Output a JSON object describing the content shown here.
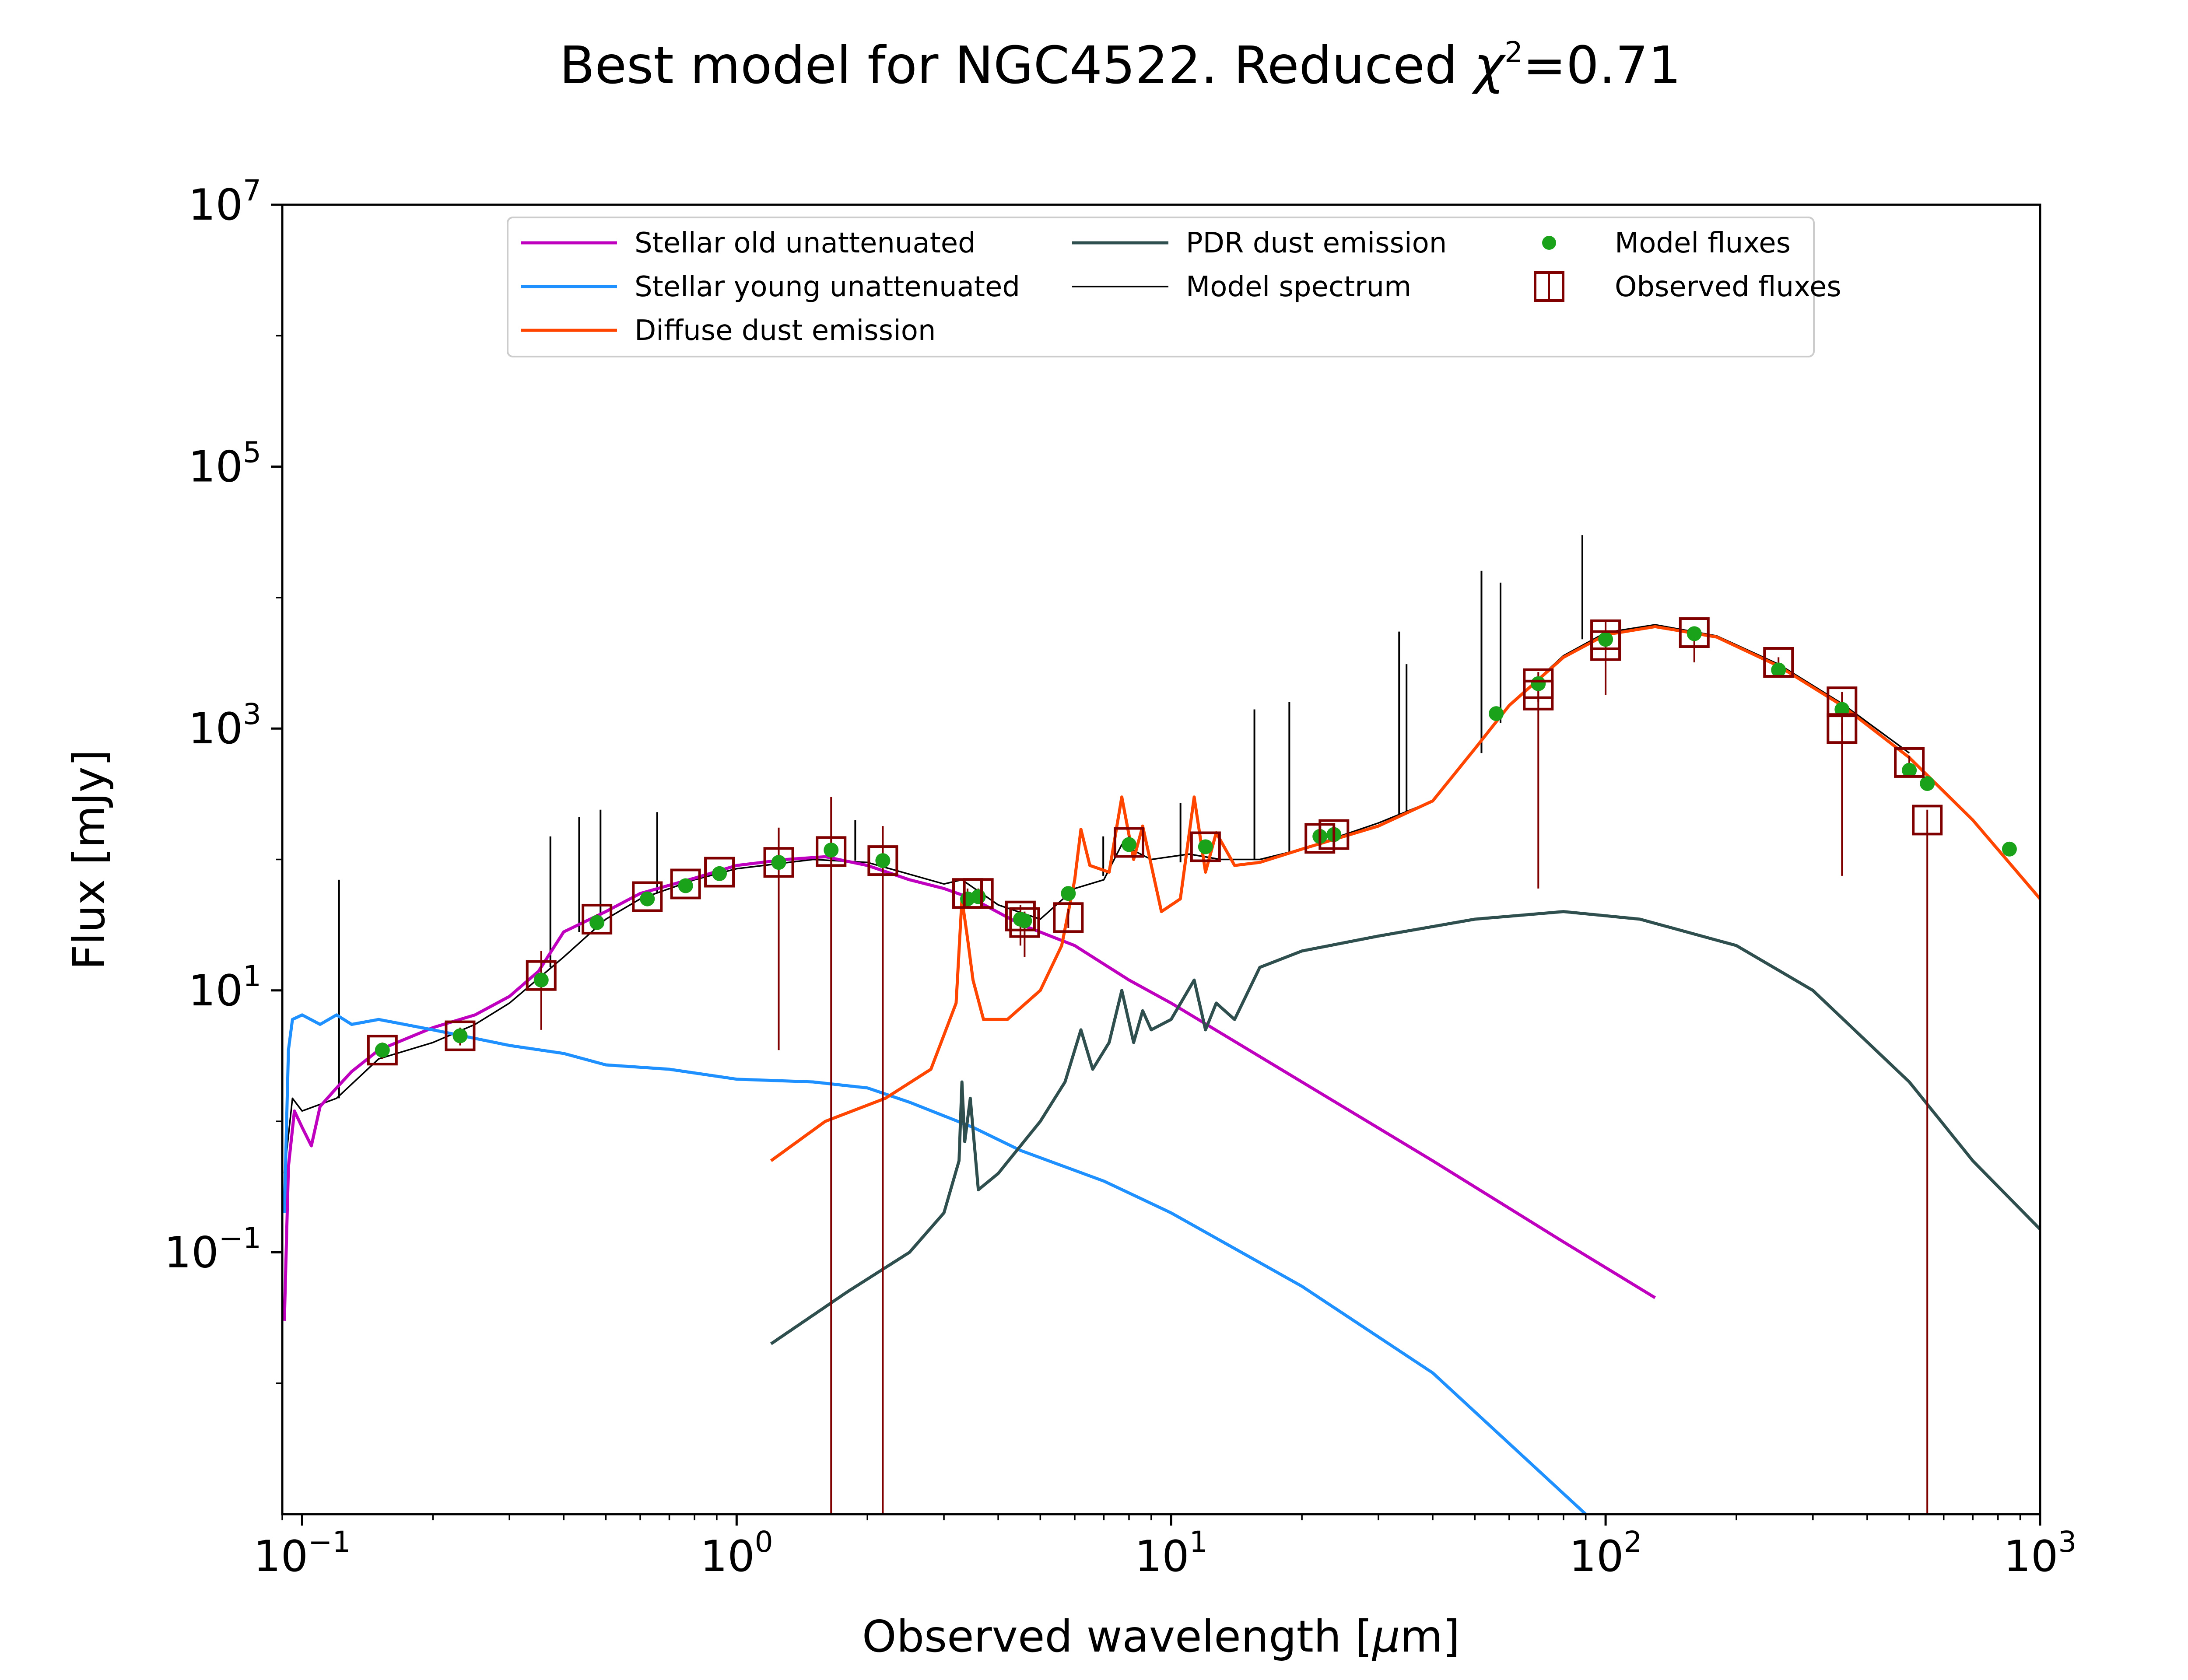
{
  "chart_data": {
    "type": "line",
    "title": {
      "main": "Best model for NGC4522. Reduced ",
      "chi": "χ",
      "chi_sup": "2",
      "tail": "=0.71"
    },
    "xlabel": {
      "pre": "Observed wavelength [",
      "mu": "μ",
      "post": "m]"
    },
    "ylabel": "Flux [mJy]",
    "xscale": "log",
    "yscale": "log",
    "xlim": [
      0.09,
      1000
    ],
    "ylim": [
      0.001,
      10000000
    ],
    "x_ticks": [
      {
        "value": 0.1,
        "base": "10",
        "exp": "−1"
      },
      {
        "value": 1,
        "base": "10",
        "exp": "0"
      },
      {
        "value": 10,
        "base": "10",
        "exp": "1"
      },
      {
        "value": 100,
        "base": "10",
        "exp": "2"
      },
      {
        "value": 1000,
        "base": "10",
        "exp": "3"
      }
    ],
    "y_ticks": [
      {
        "value": 0.1,
        "base": "10",
        "exp": "−1"
      },
      {
        "value": 10,
        "base": "10",
        "exp": "1"
      },
      {
        "value": 1000,
        "base": "10",
        "exp": "3"
      },
      {
        "value": 100000,
        "base": "10",
        "exp": "5"
      },
      {
        "value": 10000000,
        "base": "10",
        "exp": "7"
      }
    ],
    "grid": false,
    "legend": {
      "position": "top-center",
      "entries": [
        {
          "label": "Stellar old unattenuated",
          "marker": "line",
          "color": "#bf00bf"
        },
        {
          "label": "Stellar young unattenuated",
          "marker": "line",
          "color": "#1e90ff"
        },
        {
          "label": "Diffuse dust emission",
          "marker": "line",
          "color": "#ff4500"
        },
        {
          "label": "PDR dust emission",
          "marker": "line",
          "color": "#2f4f4f"
        },
        {
          "label": "Model spectrum",
          "marker": "thin-line",
          "color": "#000000"
        },
        {
          "label": "Model fluxes",
          "marker": "dot",
          "color": "#1aa31a"
        },
        {
          "label": "Observed fluxes",
          "marker": "open-square",
          "color": "#800000"
        }
      ]
    },
    "series": [
      {
        "name": "Stellar old unattenuated",
        "color": "#bf00bf",
        "width": 7,
        "points": [
          [
            0.091,
            0.03
          ],
          [
            0.093,
            0.45
          ],
          [
            0.096,
            1.2
          ],
          [
            0.1,
            0.9
          ],
          [
            0.105,
            0.65
          ],
          [
            0.11,
            1.3
          ],
          [
            0.12,
            1.8
          ],
          [
            0.13,
            2.4
          ],
          [
            0.15,
            3.5
          ],
          [
            0.2,
            5.2
          ],
          [
            0.25,
            6.5
          ],
          [
            0.3,
            9
          ],
          [
            0.35,
            14
          ],
          [
            0.4,
            28
          ],
          [
            0.5,
            40
          ],
          [
            0.6,
            55
          ],
          [
            0.8,
            72
          ],
          [
            1,
            90
          ],
          [
            1.3,
            100
          ],
          [
            1.6,
            105
          ],
          [
            2,
            90
          ],
          [
            2.5,
            70
          ],
          [
            3,
            60
          ],
          [
            3.5,
            50
          ],
          [
            4.5,
            32
          ],
          [
            6,
            22
          ],
          [
            8,
            12
          ],
          [
            10,
            8
          ],
          [
            20,
            2
          ],
          [
            40,
            0.5
          ],
          [
            80,
            0.12
          ],
          [
            130,
            0.045
          ]
        ]
      },
      {
        "name": "Stellar young unattenuated",
        "color": "#1e90ff",
        "width": 7,
        "points": [
          [
            0.091,
            0.2
          ],
          [
            0.093,
            3.5
          ],
          [
            0.095,
            6
          ],
          [
            0.1,
            6.5
          ],
          [
            0.11,
            5.5
          ],
          [
            0.12,
            6.5
          ],
          [
            0.13,
            5.5
          ],
          [
            0.15,
            6
          ],
          [
            0.2,
            5
          ],
          [
            0.3,
            3.8
          ],
          [
            0.4,
            3.3
          ],
          [
            0.5,
            2.7
          ],
          [
            0.7,
            2.5
          ],
          [
            1,
            2.1
          ],
          [
            1.5,
            2.0
          ],
          [
            2,
            1.8
          ],
          [
            2.5,
            1.4
          ],
          [
            3.5,
            0.9
          ],
          [
            4.5,
            0.6
          ],
          [
            7,
            0.35
          ],
          [
            10,
            0.2
          ],
          [
            20,
            0.055
          ],
          [
            40,
            0.012
          ],
          [
            90,
            0.001
          ]
        ]
      },
      {
        "name": "Diffuse dust emission",
        "color": "#ff4500",
        "width": 7,
        "points": [
          [
            1.2,
            0.5
          ],
          [
            1.6,
            1.0
          ],
          [
            2.2,
            1.5
          ],
          [
            2.8,
            2.5
          ],
          [
            3.2,
            8
          ],
          [
            3.3,
            50
          ],
          [
            3.4,
            25
          ],
          [
            3.5,
            12
          ],
          [
            3.7,
            6
          ],
          [
            4.2,
            6
          ],
          [
            5,
            10
          ],
          [
            5.6,
            22
          ],
          [
            6.0,
            70
          ],
          [
            6.2,
            170
          ],
          [
            6.5,
            90
          ],
          [
            7.2,
            80
          ],
          [
            7.7,
            300
          ],
          [
            8.2,
            100
          ],
          [
            8.6,
            180
          ],
          [
            9.5,
            40
          ],
          [
            10.5,
            50
          ],
          [
            11.3,
            300
          ],
          [
            12,
            80
          ],
          [
            12.7,
            160
          ],
          [
            14,
            90
          ],
          [
            16,
            95
          ],
          [
            20,
            120
          ],
          [
            30,
            180
          ],
          [
            40,
            280
          ],
          [
            50,
            700
          ],
          [
            60,
            1500
          ],
          [
            80,
            3500
          ],
          [
            100,
            5200
          ],
          [
            130,
            6000
          ],
          [
            180,
            5000
          ],
          [
            250,
            3000
          ],
          [
            350,
            1500
          ],
          [
            500,
            600
          ],
          [
            700,
            200
          ],
          [
            1000,
            50
          ]
        ]
      },
      {
        "name": "PDR dust emission",
        "color": "#2f4f4f",
        "width": 7,
        "points": [
          [
            1.2,
            0.02
          ],
          [
            1.8,
            0.05
          ],
          [
            2.5,
            0.1
          ],
          [
            3.0,
            0.2
          ],
          [
            3.25,
            0.5
          ],
          [
            3.3,
            2.0
          ],
          [
            3.35,
            0.7
          ],
          [
            3.45,
            1.5
          ],
          [
            3.6,
            0.3
          ],
          [
            4,
            0.4
          ],
          [
            5,
            1.0
          ],
          [
            5.7,
            2.0
          ],
          [
            6.2,
            5
          ],
          [
            6.6,
            2.5
          ],
          [
            7.2,
            4
          ],
          [
            7.7,
            10
          ],
          [
            8.2,
            4
          ],
          [
            8.6,
            7
          ],
          [
            9,
            5
          ],
          [
            10,
            6
          ],
          [
            11.3,
            12
          ],
          [
            12,
            5
          ],
          [
            12.7,
            8
          ],
          [
            14,
            6
          ],
          [
            16,
            15
          ],
          [
            20,
            20
          ],
          [
            30,
            26
          ],
          [
            50,
            35
          ],
          [
            80,
            40
          ],
          [
            120,
            35
          ],
          [
            200,
            22
          ],
          [
            300,
            10
          ],
          [
            500,
            2
          ],
          [
            700,
            0.5
          ],
          [
            1000,
            0.15
          ]
        ]
      },
      {
        "name": "Model spectrum",
        "color": "#000000",
        "width": 3.5,
        "points": [
          [
            0.091,
            0.4
          ],
          [
            0.095,
            1.5
          ],
          [
            0.1,
            1.2
          ],
          [
            0.12,
            1.5
          ],
          [
            0.15,
            3
          ],
          [
            0.2,
            4
          ],
          [
            0.25,
            5.5
          ],
          [
            0.3,
            8
          ],
          [
            0.4,
            18
          ],
          [
            0.5,
            35
          ],
          [
            0.6,
            50
          ],
          [
            0.8,
            70
          ],
          [
            1,
            85
          ],
          [
            1.5,
            100
          ],
          [
            2,
            95
          ],
          [
            3,
            65
          ],
          [
            3.3,
            70
          ],
          [
            4,
            45
          ],
          [
            5,
            35
          ],
          [
            6,
            60
          ],
          [
            7,
            70
          ],
          [
            7.7,
            130
          ],
          [
            9,
            100
          ],
          [
            11,
            110
          ],
          [
            13,
            100
          ],
          [
            16,
            100
          ],
          [
            20,
            120
          ],
          [
            30,
            190
          ],
          [
            40,
            280
          ],
          [
            50,
            700
          ],
          [
            60,
            1500
          ],
          [
            80,
            3600
          ],
          [
            100,
            5400
          ],
          [
            130,
            6200
          ],
          [
            180,
            5100
          ],
          [
            250,
            3100
          ],
          [
            350,
            1550
          ],
          [
            500,
            650
          ]
        ]
      }
    ],
    "emission_lines": [
      {
        "x": 0.1216,
        "top": 70,
        "base": 1.5
      },
      {
        "x": 0.3727,
        "top": 150,
        "base": 15
      },
      {
        "x": 0.4341,
        "top": 210,
        "base": 28
      },
      {
        "x": 0.4861,
        "top": 240,
        "base": 35
      },
      {
        "x": 0.6563,
        "top": 230,
        "base": 55
      },
      {
        "x": 1.875,
        "top": 200,
        "base": 98
      },
      {
        "x": 6.98,
        "top": 150,
        "base": 75
      },
      {
        "x": 10.51,
        "top": 270,
        "base": 95
      },
      {
        "x": 15.55,
        "top": 1400,
        "base": 100
      },
      {
        "x": 18.71,
        "top": 1600,
        "base": 110
      },
      {
        "x": 33.48,
        "top": 5500,
        "base": 210
      },
      {
        "x": 34.82,
        "top": 3100,
        "base": 230
      },
      {
        "x": 51.8,
        "top": 16000,
        "base": 650
      },
      {
        "x": 57.3,
        "top": 13000,
        "base": 1100
      },
      {
        "x": 88.4,
        "top": 30000,
        "base": 4800
      }
    ],
    "model_fluxes": [
      [
        0.153,
        3.5
      ],
      [
        0.231,
        4.5
      ],
      [
        0.355,
        12
      ],
      [
        0.477,
        33
      ],
      [
        0.623,
        50
      ],
      [
        0.763,
        63
      ],
      [
        0.913,
        78
      ],
      [
        1.25,
        95
      ],
      [
        1.65,
        118
      ],
      [
        2.17,
        98
      ],
      [
        3.4,
        50
      ],
      [
        3.6,
        52
      ],
      [
        4.5,
        35
      ],
      [
        4.6,
        34
      ],
      [
        5.8,
        55
      ],
      [
        8.0,
        130
      ],
      [
        12,
        125
      ],
      [
        22,
        150
      ],
      [
        23.7,
        155
      ],
      [
        56,
        1300
      ],
      [
        70,
        2200
      ],
      [
        100,
        4800
      ],
      [
        160,
        5300
      ],
      [
        250,
        2800
      ],
      [
        350,
        1400
      ],
      [
        500,
        480
      ],
      [
        550,
        380
      ],
      [
        850,
        120
      ]
    ],
    "observed_fluxes": [
      {
        "x": 0.153,
        "y": 3.5,
        "lo": 3.0,
        "hi": 4.0
      },
      {
        "x": 0.231,
        "y": 4.5,
        "lo": 3.8,
        "hi": 5.2
      },
      {
        "x": 0.355,
        "y": 13,
        "lo": 5,
        "hi": 20
      },
      {
        "x": 0.477,
        "y": 35,
        "lo": 32,
        "hi": 38
      },
      {
        "x": 0.623,
        "y": 52,
        "lo": 48,
        "hi": 56
      },
      {
        "x": 0.763,
        "y": 65,
        "lo": 60,
        "hi": 70
      },
      {
        "x": 0.913,
        "y": 80,
        "lo": 74,
        "hi": 86
      },
      {
        "x": 1.25,
        "y": 95,
        "lo": 3.5,
        "hi": 175
      },
      {
        "x": 1.65,
        "y": 115,
        "lo": 0.001,
        "hi": 300
      },
      {
        "x": 2.17,
        "y": 98,
        "lo": 0.001,
        "hi": 180
      },
      {
        "x": 3.4,
        "y": 55,
        "lo": 50,
        "hi": 60
      },
      {
        "x": 3.6,
        "y": 55,
        "lo": 50,
        "hi": 60
      },
      {
        "x": 4.5,
        "y": 37,
        "lo": 22,
        "hi": 45
      },
      {
        "x": 4.6,
        "y": 33,
        "lo": 18,
        "hi": 40
      },
      {
        "x": 5.8,
        "y": 36,
        "lo": 30,
        "hi": 42
      },
      {
        "x": 8.0,
        "y": 135,
        "lo": 120,
        "hi": 150
      },
      {
        "x": 12,
        "y": 125,
        "lo": 110,
        "hi": 140
      },
      {
        "x": 22,
        "y": 145,
        "lo": 130,
        "hi": 160
      },
      {
        "x": 23.7,
        "y": 155,
        "lo": 140,
        "hi": 170
      },
      {
        "x": 70,
        "y": 2200,
        "lo": 60,
        "hi": 2700
      },
      {
        "x": 70,
        "y": 1800,
        "lo": 1600,
        "hi": 2000
      },
      {
        "x": 100,
        "y": 5200,
        "lo": 1800,
        "hi": 6500
      },
      {
        "x": 100,
        "y": 4300,
        "lo": 3800,
        "hi": 4800
      },
      {
        "x": 160,
        "y": 5400,
        "lo": 3200,
        "hi": 6000
      },
      {
        "x": 250,
        "y": 3200,
        "lo": 2900,
        "hi": 3500
      },
      {
        "x": 350,
        "y": 1600,
        "lo": 75,
        "hi": 1900
      },
      {
        "x": 350,
        "y": 1000,
        "lo": 900,
        "hi": 1100
      },
      {
        "x": 500,
        "y": 550,
        "lo": 480,
        "hi": 620
      },
      {
        "x": 550,
        "y": 200,
        "lo": 0.001,
        "hi": 240
      }
    ]
  }
}
